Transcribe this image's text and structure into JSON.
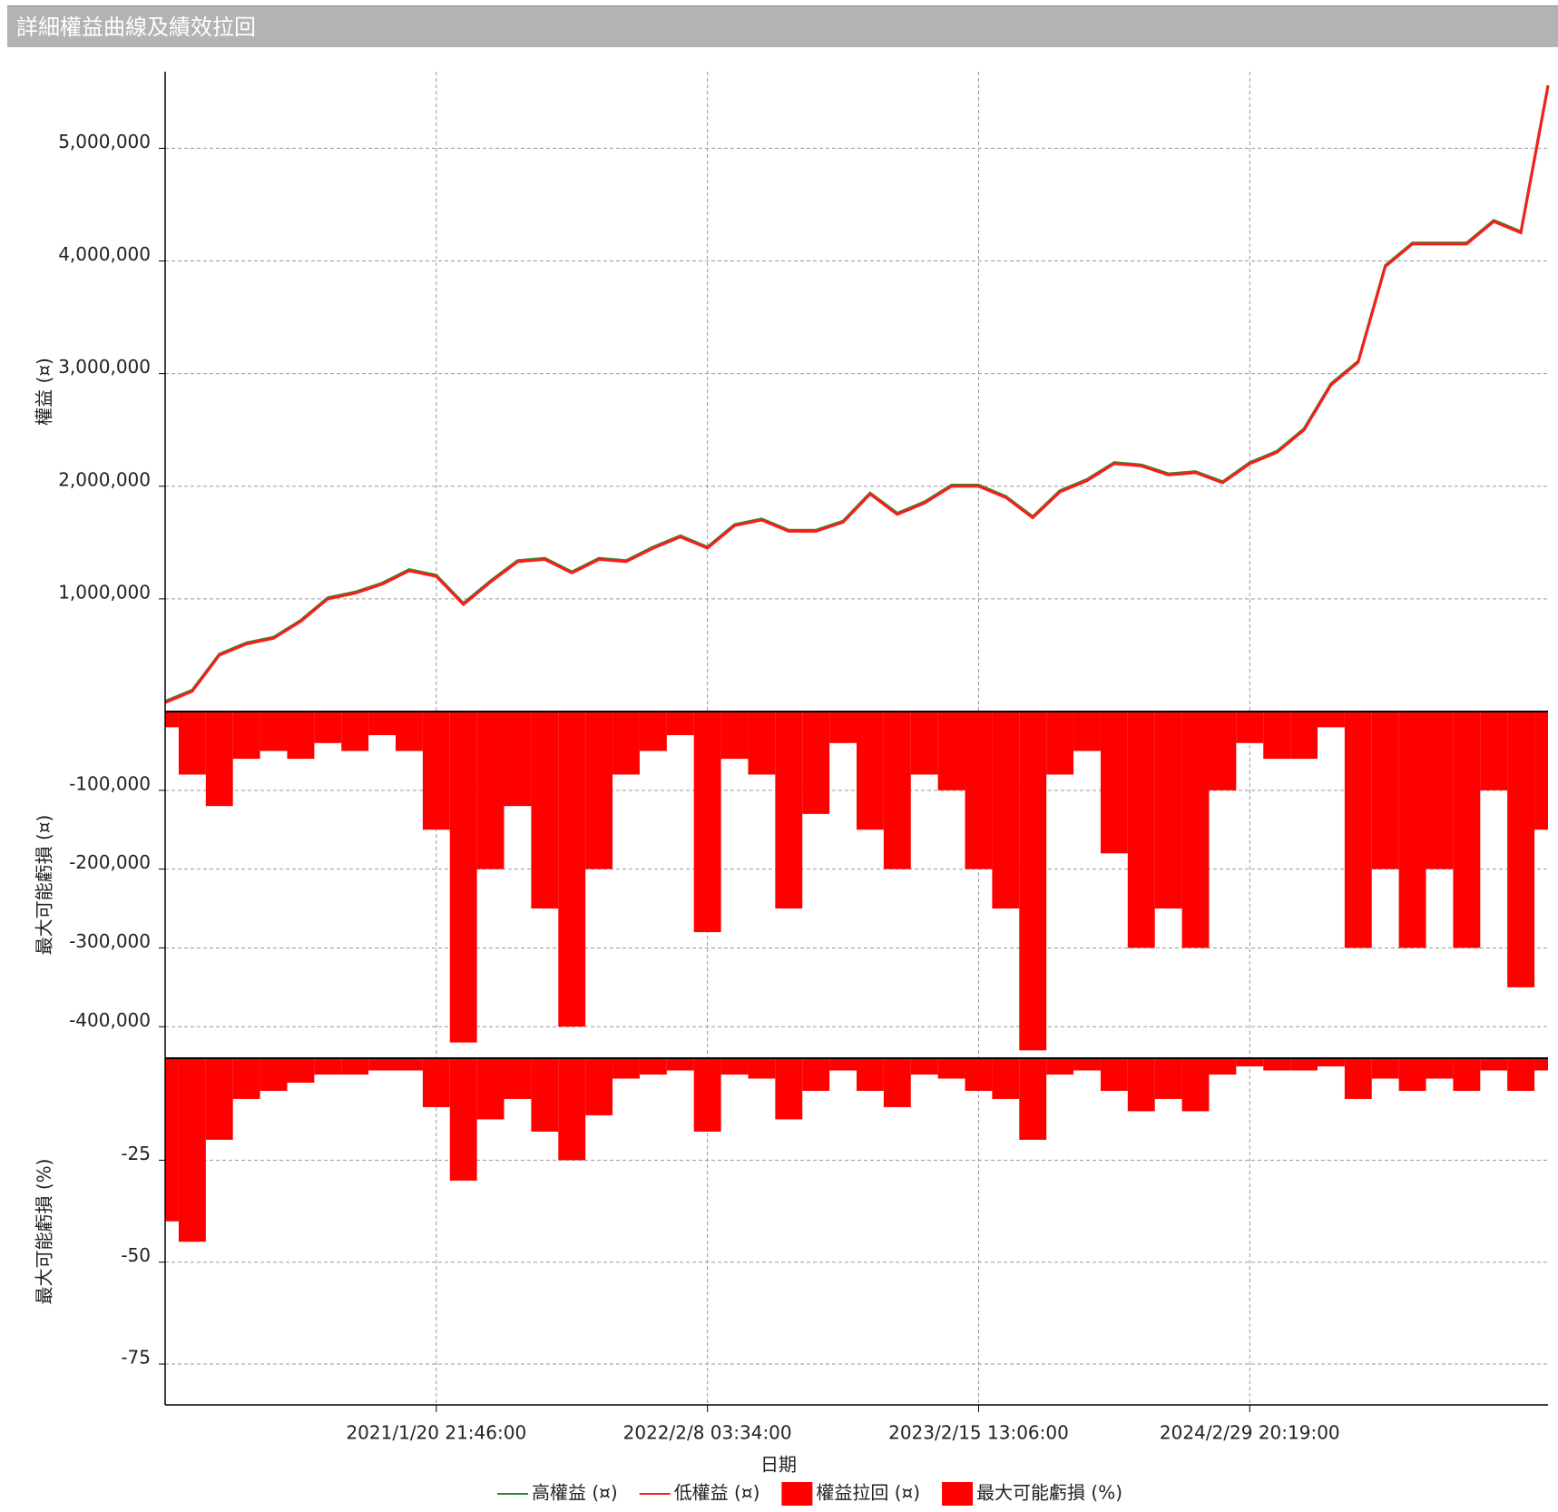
{
  "title": "詳細權益曲線及績效拉回",
  "chart_data": {
    "type": "combo",
    "x_label": "日期",
    "categories": [
      null,
      null,
      null,
      null,
      null,
      null,
      null,
      null,
      null,
      null,
      "2021/1/20 21:46:00",
      null,
      null,
      null,
      null,
      null,
      null,
      null,
      null,
      null,
      "2022/2/8 03:34:00",
      null,
      null,
      null,
      null,
      null,
      null,
      null,
      null,
      null,
      "2023/2/15 13:06:00",
      null,
      null,
      null,
      null,
      null,
      null,
      null,
      null,
      null,
      "2024/2/29 20:19:00",
      null,
      null,
      null,
      null,
      null,
      null,
      null,
      null,
      null,
      null,
      null
    ],
    "grid": true,
    "panels": [
      {
        "type": "line",
        "y_label": "權益 (¤)",
        "ylim": [
          0,
          5680000
        ],
        "yticks": [
          {
            "value": 1000000,
            "label": "1,000,000"
          },
          {
            "value": 2000000,
            "label": "2,000,000"
          },
          {
            "value": 3000000,
            "label": "3,000,000"
          },
          {
            "value": 4000000,
            "label": "4,000,000"
          },
          {
            "value": 5000000,
            "label": "5,000,000"
          }
        ],
        "series": [
          {
            "name": "高權益 (¤)",
            "color": "#2e8b2e",
            "values": [
              90000,
              190000,
              510000,
              610000,
              660000,
              810000,
              1010000,
              1060000,
              1140000,
              1260000,
              1210000,
              960000,
              1160000,
              1340000,
              1360000,
              1240000,
              1360000,
              1340000,
              1460000,
              1560000,
              1460000,
              1660000,
              1710000,
              1610000,
              1610000,
              1690000,
              1940000,
              1760000,
              1860000,
              2010000,
              2010000,
              1910000,
              1730000,
              1960000,
              2060000,
              2210000,
              2190000,
              2110000,
              2130000,
              2040000,
              2210000,
              2310000,
              2510000,
              2910000,
              3110000,
              3960000,
              4160000,
              4160000,
              4160000,
              4360000,
              4260000,
              5560000
            ]
          },
          {
            "name": "低權益 (¤)",
            "color": "#ff1a1a",
            "values": [
              80000,
              180000,
              500000,
              600000,
              650000,
              800000,
              1000000,
              1050000,
              1130000,
              1250000,
              1200000,
              950000,
              1150000,
              1330000,
              1350000,
              1230000,
              1350000,
              1330000,
              1450000,
              1550000,
              1450000,
              1650000,
              1700000,
              1600000,
              1600000,
              1680000,
              1930000,
              1750000,
              1850000,
              2000000,
              2000000,
              1900000,
              1720000,
              1950000,
              2050000,
              2200000,
              2180000,
              2100000,
              2120000,
              2030000,
              2200000,
              2300000,
              2500000,
              2900000,
              3100000,
              3950000,
              4150000,
              4150000,
              4150000,
              4350000,
              4250000,
              5550000
            ]
          }
        ]
      },
      {
        "type": "area",
        "y_label": "最大可能虧損 (¤)",
        "ylim": [
          -440000,
          0
        ],
        "yticks": [
          {
            "value": -100000,
            "label": "-100,000"
          },
          {
            "value": -200000,
            "label": "-200,000"
          },
          {
            "value": -300000,
            "label": "-300,000"
          },
          {
            "value": -400000,
            "label": "-400,000"
          }
        ],
        "series": [
          {
            "name": "權益拉回 (¤)",
            "color": "#ff0000",
            "values": [
              -20000,
              -80000,
              -120000,
              -60000,
              -50000,
              -60000,
              -40000,
              -50000,
              -30000,
              -50000,
              -150000,
              -420000,
              -200000,
              -120000,
              -250000,
              -400000,
              -200000,
              -80000,
              -50000,
              -30000,
              -280000,
              -60000,
              -80000,
              -250000,
              -130000,
              -40000,
              -150000,
              -200000,
              -80000,
              -100000,
              -200000,
              -250000,
              -430000,
              -80000,
              -50000,
              -180000,
              -300000,
              -250000,
              -300000,
              -100000,
              -40000,
              -60000,
              -60000,
              -20000,
              -300000,
              -200000,
              -300000,
              -200000,
              -300000,
              -100000,
              -350000,
              -150000
            ]
          }
        ]
      },
      {
        "type": "area",
        "y_label": "最大可能虧損 (%)",
        "ylim": [
          -85,
          0
        ],
        "yticks": [
          -25,
          -50,
          -75
        ],
        "series": [
          {
            "name": "最大可能虧損 (%)",
            "color": "#ff0000",
            "values": [
              -40,
              -45,
              -20,
              -10,
              -8,
              -6,
              -4,
              -4,
              -3,
              -3,
              -12,
              -30,
              -15,
              -10,
              -18,
              -25,
              -14,
              -5,
              -4,
              -3,
              -18,
              -4,
              -5,
              -15,
              -8,
              -3,
              -8,
              -12,
              -4,
              -5,
              -8,
              -10,
              -20,
              -4,
              -3,
              -8,
              -13,
              -10,
              -13,
              -4,
              -2,
              -3,
              -3,
              -2,
              -10,
              -5,
              -8,
              -5,
              -8,
              -3,
              -8,
              -3
            ]
          }
        ]
      }
    ]
  }
}
